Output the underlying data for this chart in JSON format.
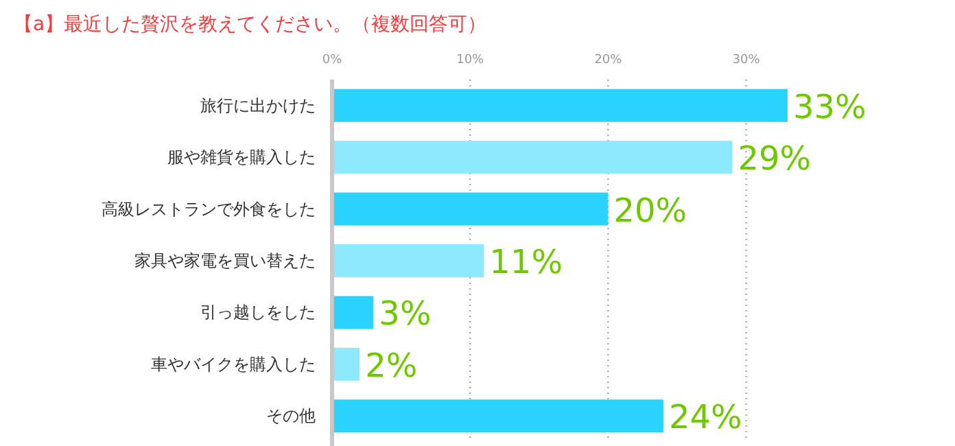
{
  "chart_data": {
    "type": "bar",
    "orientation": "horizontal",
    "title": "【a】最近した贅沢を教えてください。（複数回答可）",
    "categories": [
      "旅行に出かけた",
      "服や雑貨を購入した",
      "高級レストランで外食をした",
      "家具や家電を買い替えた",
      "引っ越しをした",
      "車やバイクを購入した",
      "その他"
    ],
    "values": [
      33,
      29,
      20,
      11,
      3,
      2,
      24
    ],
    "colors": [
      "#2ad3fe",
      "#8ce9fe",
      "#2ad3fe",
      "#8ce9fe",
      "#2ad3fe",
      "#8ce9fe",
      "#2ad3fe"
    ],
    "value_labels": [
      "33%",
      "29%",
      "20%",
      "11%",
      "3%",
      "2%",
      "24%"
    ],
    "xlim": [
      0,
      33
    ],
    "xticks": [
      {
        "value": 0,
        "label": "0%"
      },
      {
        "value": 10,
        "label": "10%"
      },
      {
        "value": 20,
        "label": "20%"
      },
      {
        "value": 30,
        "label": "30%"
      }
    ],
    "grid": "x"
  }
}
